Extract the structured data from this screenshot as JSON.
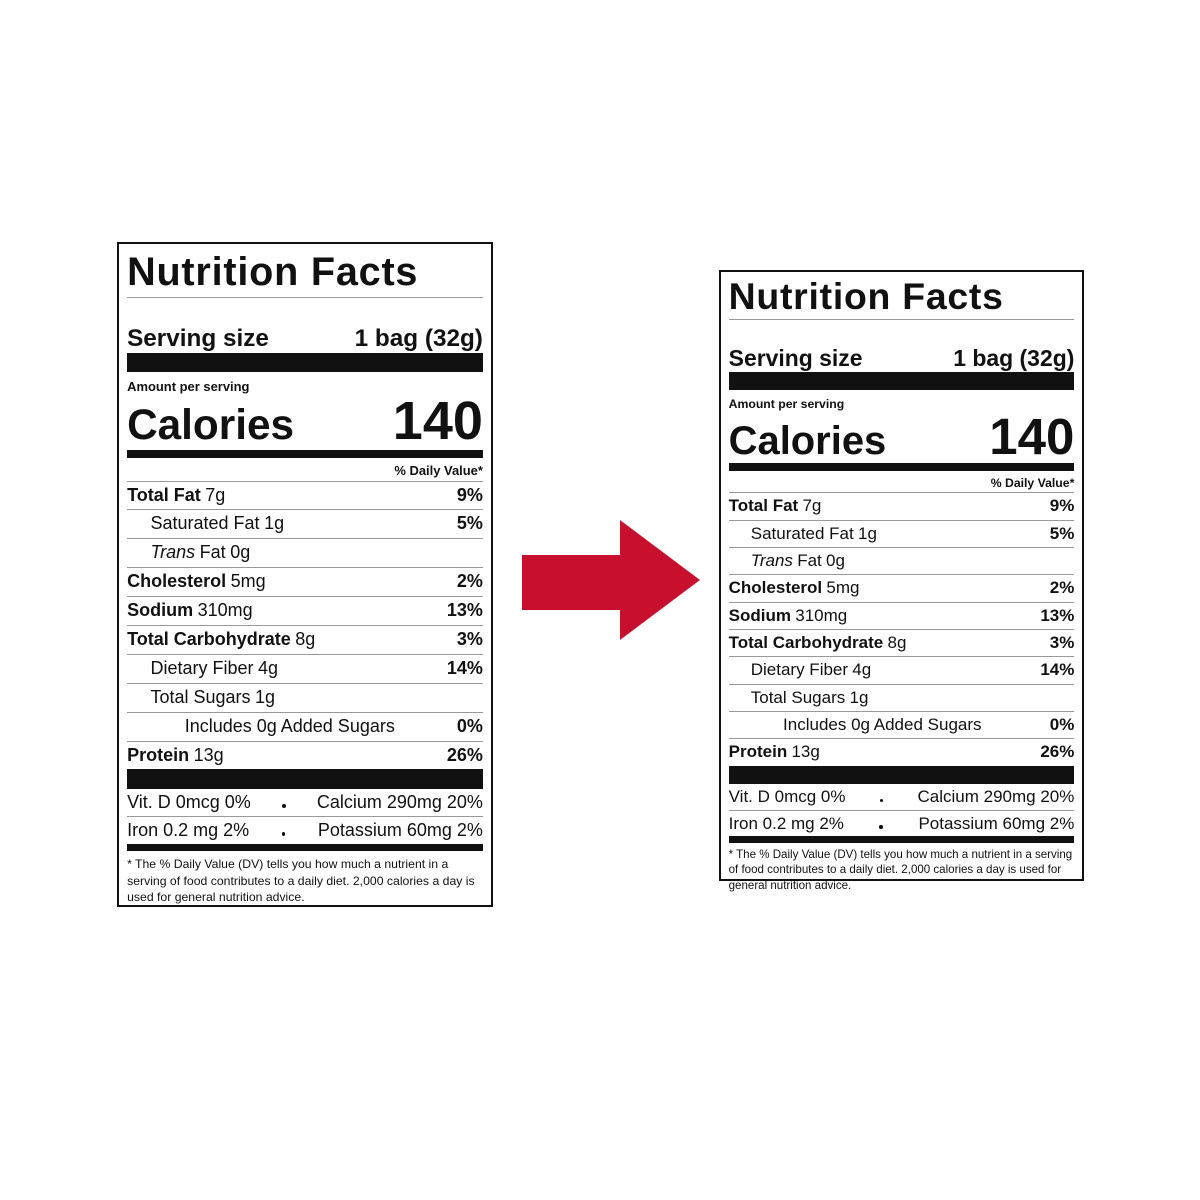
{
  "labels": [
    {
      "title": "Nutrition Facts",
      "serving_size": {
        "label": "Serving size",
        "value": "1 bag (32g)"
      },
      "amount_per_serving": "Amount per serving",
      "calories": {
        "label": "Calories",
        "value": "140"
      },
      "dv_header": "% Daily Value*",
      "nutrients": [
        {
          "name": "Total Fat",
          "amount": "7g",
          "dv": "9%"
        },
        {
          "name": "Saturated Fat",
          "amount": "1g",
          "dv": "5%"
        },
        {
          "prefix": "Trans",
          "name": "Fat",
          "amount": "0g"
        },
        {
          "name": "Cholesterol",
          "amount": "5mg",
          "dv": "2%"
        },
        {
          "name": "Sodium",
          "amount": "310mg",
          "dv": "13%"
        },
        {
          "name": "Total Carbohydrate",
          "amount": "8g",
          "dv": "3%"
        },
        {
          "name": "Dietary Fiber",
          "amount": "4g",
          "dv": "14%"
        },
        {
          "name": "Total Sugars",
          "amount": "1g"
        },
        {
          "name": "Includes 0g Added Sugars",
          "dv": "0%"
        },
        {
          "name": "Protein",
          "amount": "13g",
          "dv": "26%"
        }
      ],
      "vitamins": [
        [
          "Vit. D 0mcg 0%",
          "Calcium 290mg 20%"
        ],
        [
          "Iron 0.2 mg 2%",
          "Potassium 60mg 2%"
        ]
      ],
      "footnote": "* The % Daily Value (DV) tells you how much a nutrient in a serving of food contributes to a daily diet. 2,000 calories a day is used for general nutrition advice."
    },
    {
      "title": "Nutrition Facts",
      "serving_size": {
        "label": "Serving size",
        "value": "1 bag (32g)"
      },
      "amount_per_serving": "Amount per serving",
      "calories": {
        "label": "Calories",
        "value": "140"
      },
      "dv_header": "% Daily Value*",
      "nutrients": [
        {
          "name": "Total Fat",
          "amount": "7g",
          "dv": "9%"
        },
        {
          "name": "Saturated Fat",
          "amount": "1g",
          "dv": "5%"
        },
        {
          "prefix": "Trans",
          "name": "Fat",
          "amount": "0g"
        },
        {
          "name": "Cholesterol",
          "amount": "5mg",
          "dv": "2%"
        },
        {
          "name": "Sodium",
          "amount": "310mg",
          "dv": "13%"
        },
        {
          "name": "Total Carbohydrate",
          "amount": "8g",
          "dv": "3%"
        },
        {
          "name": "Dietary Fiber",
          "amount": "4g",
          "dv": "14%"
        },
        {
          "name": "Total Sugars",
          "amount": "1g"
        },
        {
          "name": "Includes 0g Added Sugars",
          "dv": "0%"
        },
        {
          "name": "Protein",
          "amount": "13g",
          "dv": "26%"
        }
      ],
      "vitamins": [
        [
          "Vit. D 0mcg 0%",
          "Calcium 290mg 20%"
        ],
        [
          "Iron 0.2 mg 2%",
          "Potassium 60mg 2%"
        ]
      ],
      "footnote": "* The % Daily Value (DV) tells you how much a nutrient in a serving of food contributes to a daily diet. 2,000 calories a day is used for general nutrition advice."
    }
  ]
}
